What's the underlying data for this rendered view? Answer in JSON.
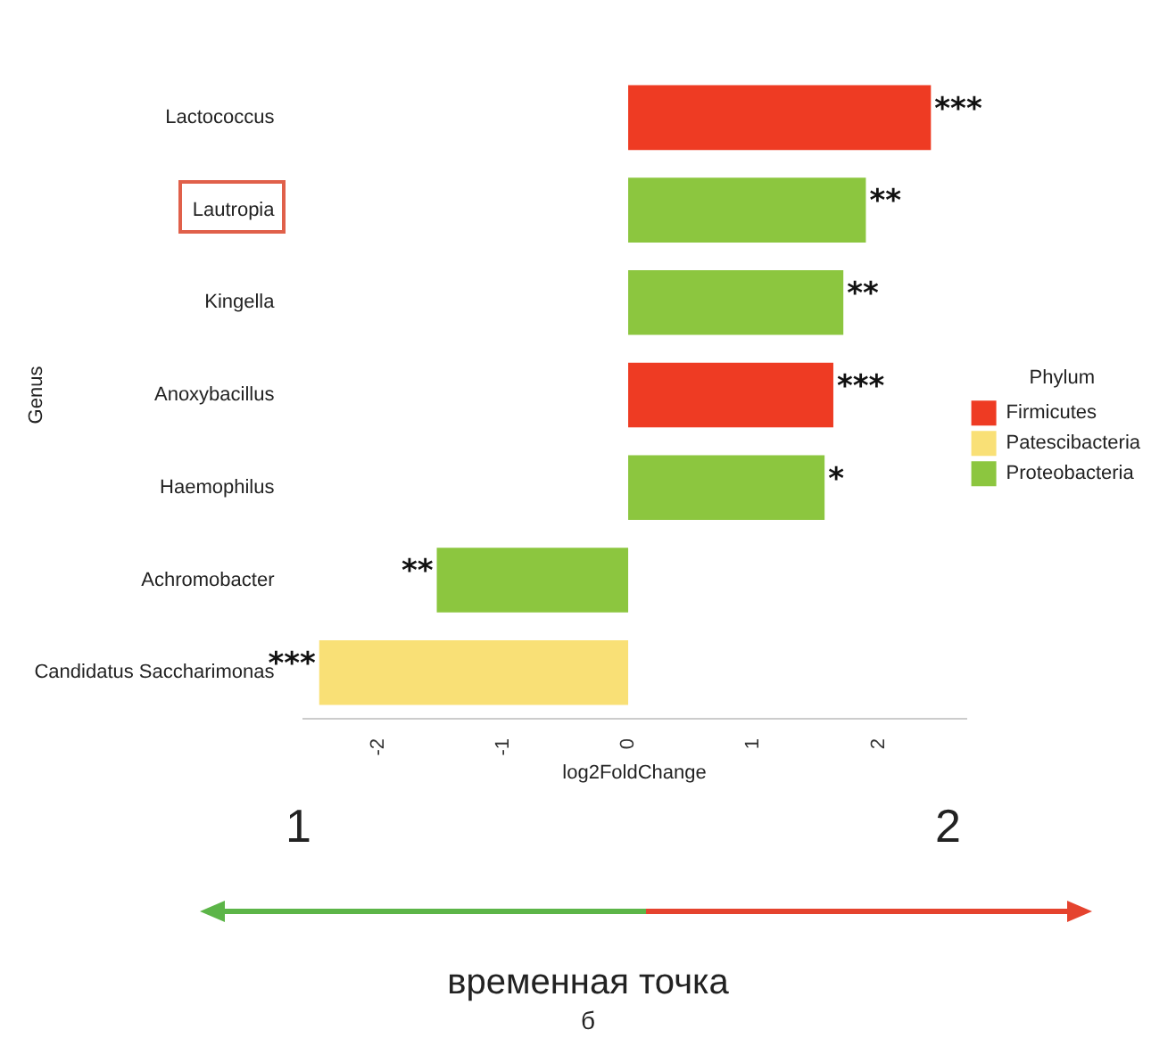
{
  "chart_data": {
    "type": "bar",
    "orientation": "horizontal",
    "xlabel": "log2FoldChange",
    "ylabel": "Genus",
    "legend_title": "Phylum",
    "legend": "right",
    "grid": false,
    "categories": [
      "Lactococcus",
      "Lautropia",
      "Kingella",
      "Anoxybacillus",
      "Haemophilus",
      "Achromobacter",
      "Candidatus Saccharimonas"
    ],
    "series": [
      {
        "name": "Firmicutes",
        "color": "#ee3b23",
        "values": [
          2.42,
          null,
          null,
          1.64,
          null,
          null,
          null
        ]
      },
      {
        "name": "Patescibacteria",
        "color": "#f9e076",
        "values": [
          null,
          null,
          null,
          null,
          null,
          null,
          -2.47
        ]
      },
      {
        "name": "Proteobacteria",
        "color": "#8cc63f",
        "values": [
          null,
          1.9,
          1.72,
          null,
          1.57,
          -1.53,
          null
        ]
      }
    ],
    "xlim": [
      -2.6,
      2.7
    ],
    "xticks": [
      -2,
      -1,
      0,
      1,
      2
    ],
    "annotations": [
      {
        "text": "***",
        "x": 2.42,
        "y": "Lactococcus"
      },
      {
        "text": "**",
        "x": 1.9,
        "y": "Lautropia"
      },
      {
        "text": "**",
        "x": 1.72,
        "y": "Kingella"
      },
      {
        "text": "***",
        "x": 1.64,
        "y": "Anoxybacillus"
      },
      {
        "text": "*",
        "x": 1.57,
        "y": "Haemophilus"
      },
      {
        "text": "**",
        "x": -1.53,
        "y": "Achromobacter"
      },
      {
        "text": "***",
        "x": -2.47,
        "y": "Candidatus Saccharimonas"
      },
      "1",
      "2",
      "временная точка",
      "б"
    ]
  }
}
